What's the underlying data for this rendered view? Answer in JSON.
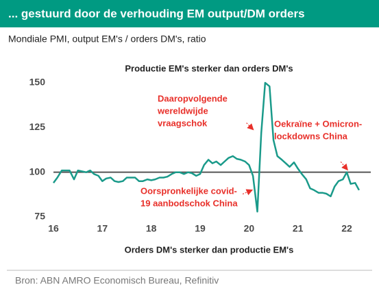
{
  "chart_data": {
    "type": "line",
    "header": "... gestuurd door de verhouding EM output/DM orders",
    "subtitle": "Mondiale PMI, output EM's / orders DM's, ratio",
    "title": "Productie EM's sterker dan orders DM's",
    "xlabel": "Orders DM's sterker dan productie EM's",
    "source": "Bron: ABN AMRO Economisch Bureau, Refinitiv",
    "color": "#1a9a8a",
    "reference_line": 100,
    "x": [
      16.0,
      16.08,
      16.17,
      16.25,
      16.33,
      16.42,
      16.5,
      16.58,
      16.67,
      16.75,
      16.83,
      16.92,
      17.0,
      17.08,
      17.17,
      17.25,
      17.33,
      17.42,
      17.5,
      17.58,
      17.67,
      17.75,
      17.83,
      17.92,
      18.0,
      18.08,
      18.17,
      18.25,
      18.33,
      18.42,
      18.5,
      18.58,
      18.67,
      18.75,
      18.83,
      18.92,
      19.0,
      19.08,
      19.17,
      19.25,
      19.33,
      19.42,
      19.5,
      19.58,
      19.67,
      19.75,
      19.83,
      19.92,
      20.0,
      20.08,
      20.17,
      20.25,
      20.33,
      20.42,
      20.5,
      20.58,
      20.67,
      20.75,
      20.83,
      20.92,
      21.0,
      21.08,
      21.17,
      21.25,
      21.33,
      21.42,
      21.5,
      21.58,
      21.67,
      21.75,
      21.83,
      21.92,
      22.0,
      22.08,
      22.17,
      22.25
    ],
    "values": [
      94,
      97,
      101,
      101,
      101,
      96,
      101,
      100.5,
      100,
      101,
      99,
      98,
      95,
      96.5,
      97,
      95,
      94.5,
      95,
      97,
      97,
      97,
      95,
      95,
      96,
      95.5,
      96,
      97,
      97,
      97.5,
      99,
      100,
      100,
      99,
      100,
      99.5,
      98,
      99,
      104,
      107,
      105,
      106,
      104,
      106,
      108,
      109,
      107.5,
      107,
      106,
      104,
      98,
      78,
      122,
      150,
      148,
      118,
      109,
      107,
      105,
      103,
      105.5,
      102,
      99,
      96,
      91,
      90,
      88.5,
      88.5,
      88,
      86.5,
      92,
      95,
      96,
      100,
      93.5,
      94,
      90
    ],
    "xlim": [
      16,
      22.35
    ],
    "xticks": [
      16,
      17,
      18,
      19,
      20,
      21,
      22
    ],
    "ylim": [
      75,
      150
    ],
    "yticks": [
      75,
      100,
      125,
      150
    ],
    "annotations": [
      {
        "lines": [
          "Daaropvolgende",
          "wereldwijde",
          "vraagschok"
        ],
        "x": 20.2,
        "y": 123
      },
      {
        "lines": [
          "Oekraïne + Omicron-",
          "lockdowns China"
        ],
        "x": 22.1,
        "y": 100.5
      },
      {
        "lines": [
          "Oorspronkelijke covid-",
          "19 aanbodschok China"
        ],
        "x": 20.15,
        "y": 92
      }
    ]
  }
}
